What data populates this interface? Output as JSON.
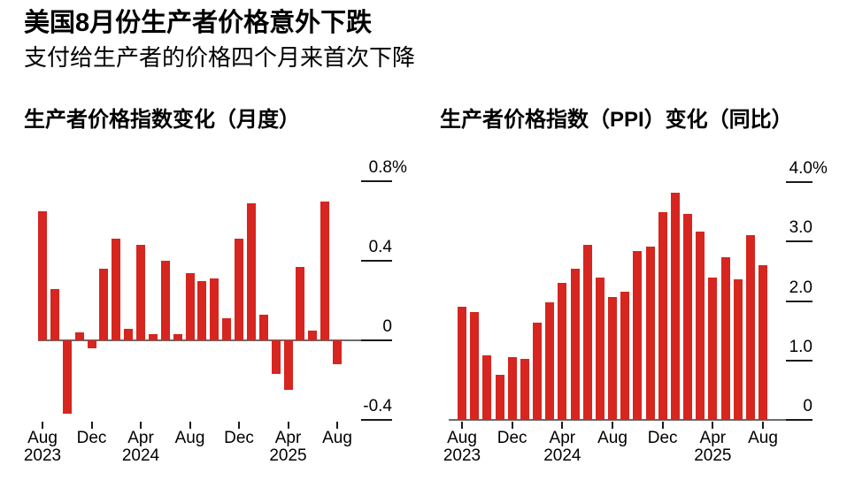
{
  "header": {
    "title": "美国8月份生产者价格意外下跌",
    "subtitle": "支付给生产者的价格四个月来首次下降"
  },
  "colors": {
    "bar": "#d7251f",
    "axis_line": "#6e6a67",
    "tick": "#1a1a1a"
  },
  "chart_data": [
    {
      "type": "bar",
      "title": "生产者价格指数变化（月度）",
      "unit": "%",
      "y_axis_side": "right",
      "grid": false,
      "ylim": [
        -0.45,
        0.81
      ],
      "categories": [
        "Aug 2023",
        "Sep 2023",
        "Oct 2023",
        "Nov 2023",
        "Dec 2023",
        "Jan 2024",
        "Feb 2024",
        "Mar 2024",
        "Apr 2024",
        "May 2024",
        "Jun 2024",
        "Jul 2024",
        "Aug 2024",
        "Sep 2024",
        "Oct 2024",
        "Nov 2024",
        "Dec 2024",
        "Jan 2025",
        "Feb 2025",
        "Mar 2025",
        "Apr 2025",
        "May 2025",
        "Jun 2025",
        "Jul 2025",
        "Aug 2025"
      ],
      "values": [
        0.65,
        0.26,
        -0.37,
        0.04,
        -0.04,
        0.36,
        0.51,
        0.06,
        0.48,
        0.03,
        0.4,
        0.03,
        0.34,
        0.3,
        0.31,
        0.11,
        0.51,
        0.69,
        0.13,
        -0.17,
        -0.25,
        0.37,
        0.05,
        0.7,
        -0.12
      ],
      "yticks": [
        {
          "label": "0.8",
          "suffix": "%",
          "value": 0.8
        },
        {
          "label": "0.4",
          "suffix": "",
          "value": 0.4
        },
        {
          "label": "0",
          "suffix": "",
          "value": 0
        },
        {
          "label": "-0.4",
          "suffix": "",
          "value": -0.4
        }
      ],
      "xticks": [
        {
          "index": 0,
          "label": "Aug",
          "year": "2023"
        },
        {
          "index": 4,
          "label": "Dec",
          "year": ""
        },
        {
          "index": 8,
          "label": "Apr",
          "year": "2024"
        },
        {
          "index": 12,
          "label": "Aug",
          "year": ""
        },
        {
          "index": 16,
          "label": "Dec",
          "year": ""
        },
        {
          "index": 20,
          "label": "Apr",
          "year": "2025"
        },
        {
          "index": 24,
          "label": "Aug",
          "year": ""
        }
      ]
    },
    {
      "type": "bar",
      "title": "生产者价格指数（PPI）变化（同比）",
      "unit": "%",
      "y_axis_side": "right",
      "grid": false,
      "ylim": [
        0,
        4.0
      ],
      "categories": [
        "Aug 2023",
        "Sep 2023",
        "Oct 2023",
        "Nov 2023",
        "Dec 2023",
        "Jan 2024",
        "Feb 2024",
        "Mar 2024",
        "Apr 2024",
        "May 2024",
        "Jun 2024",
        "Jul 2024",
        "Aug 2024",
        "Sep 2024",
        "Oct 2024",
        "Nov 2024",
        "Dec 2024",
        "Jan 2025",
        "Feb 2025",
        "Mar 2025",
        "Apr 2025",
        "May 2025",
        "Jun 2025",
        "Jul 2025",
        "Aug 2025"
      ],
      "values": [
        1.91,
        1.82,
        1.08,
        0.76,
        1.05,
        1.03,
        1.64,
        1.98,
        2.31,
        2.55,
        2.94,
        2.4,
        2.06,
        2.15,
        2.84,
        2.92,
        3.5,
        3.82,
        3.46,
        3.17,
        2.4,
        2.74,
        2.37,
        3.11,
        2.6
      ],
      "yticks": [
        {
          "label": "4.0",
          "suffix": "%",
          "value": 4.0
        },
        {
          "label": "3.0",
          "suffix": "",
          "value": 3.0
        },
        {
          "label": "2.0",
          "suffix": "",
          "value": 2.0
        },
        {
          "label": "1.0",
          "suffix": "",
          "value": 1.0
        },
        {
          "label": "0",
          "suffix": "",
          "value": 0
        }
      ],
      "xticks": [
        {
          "index": 0,
          "label": "Aug",
          "year": "2023"
        },
        {
          "index": 4,
          "label": "Dec",
          "year": ""
        },
        {
          "index": 8,
          "label": "Apr",
          "year": "2024"
        },
        {
          "index": 12,
          "label": "Aug",
          "year": ""
        },
        {
          "index": 16,
          "label": "Dec",
          "year": ""
        },
        {
          "index": 20,
          "label": "Apr",
          "year": "2025"
        },
        {
          "index": 24,
          "label": "Aug",
          "year": ""
        }
      ]
    }
  ]
}
